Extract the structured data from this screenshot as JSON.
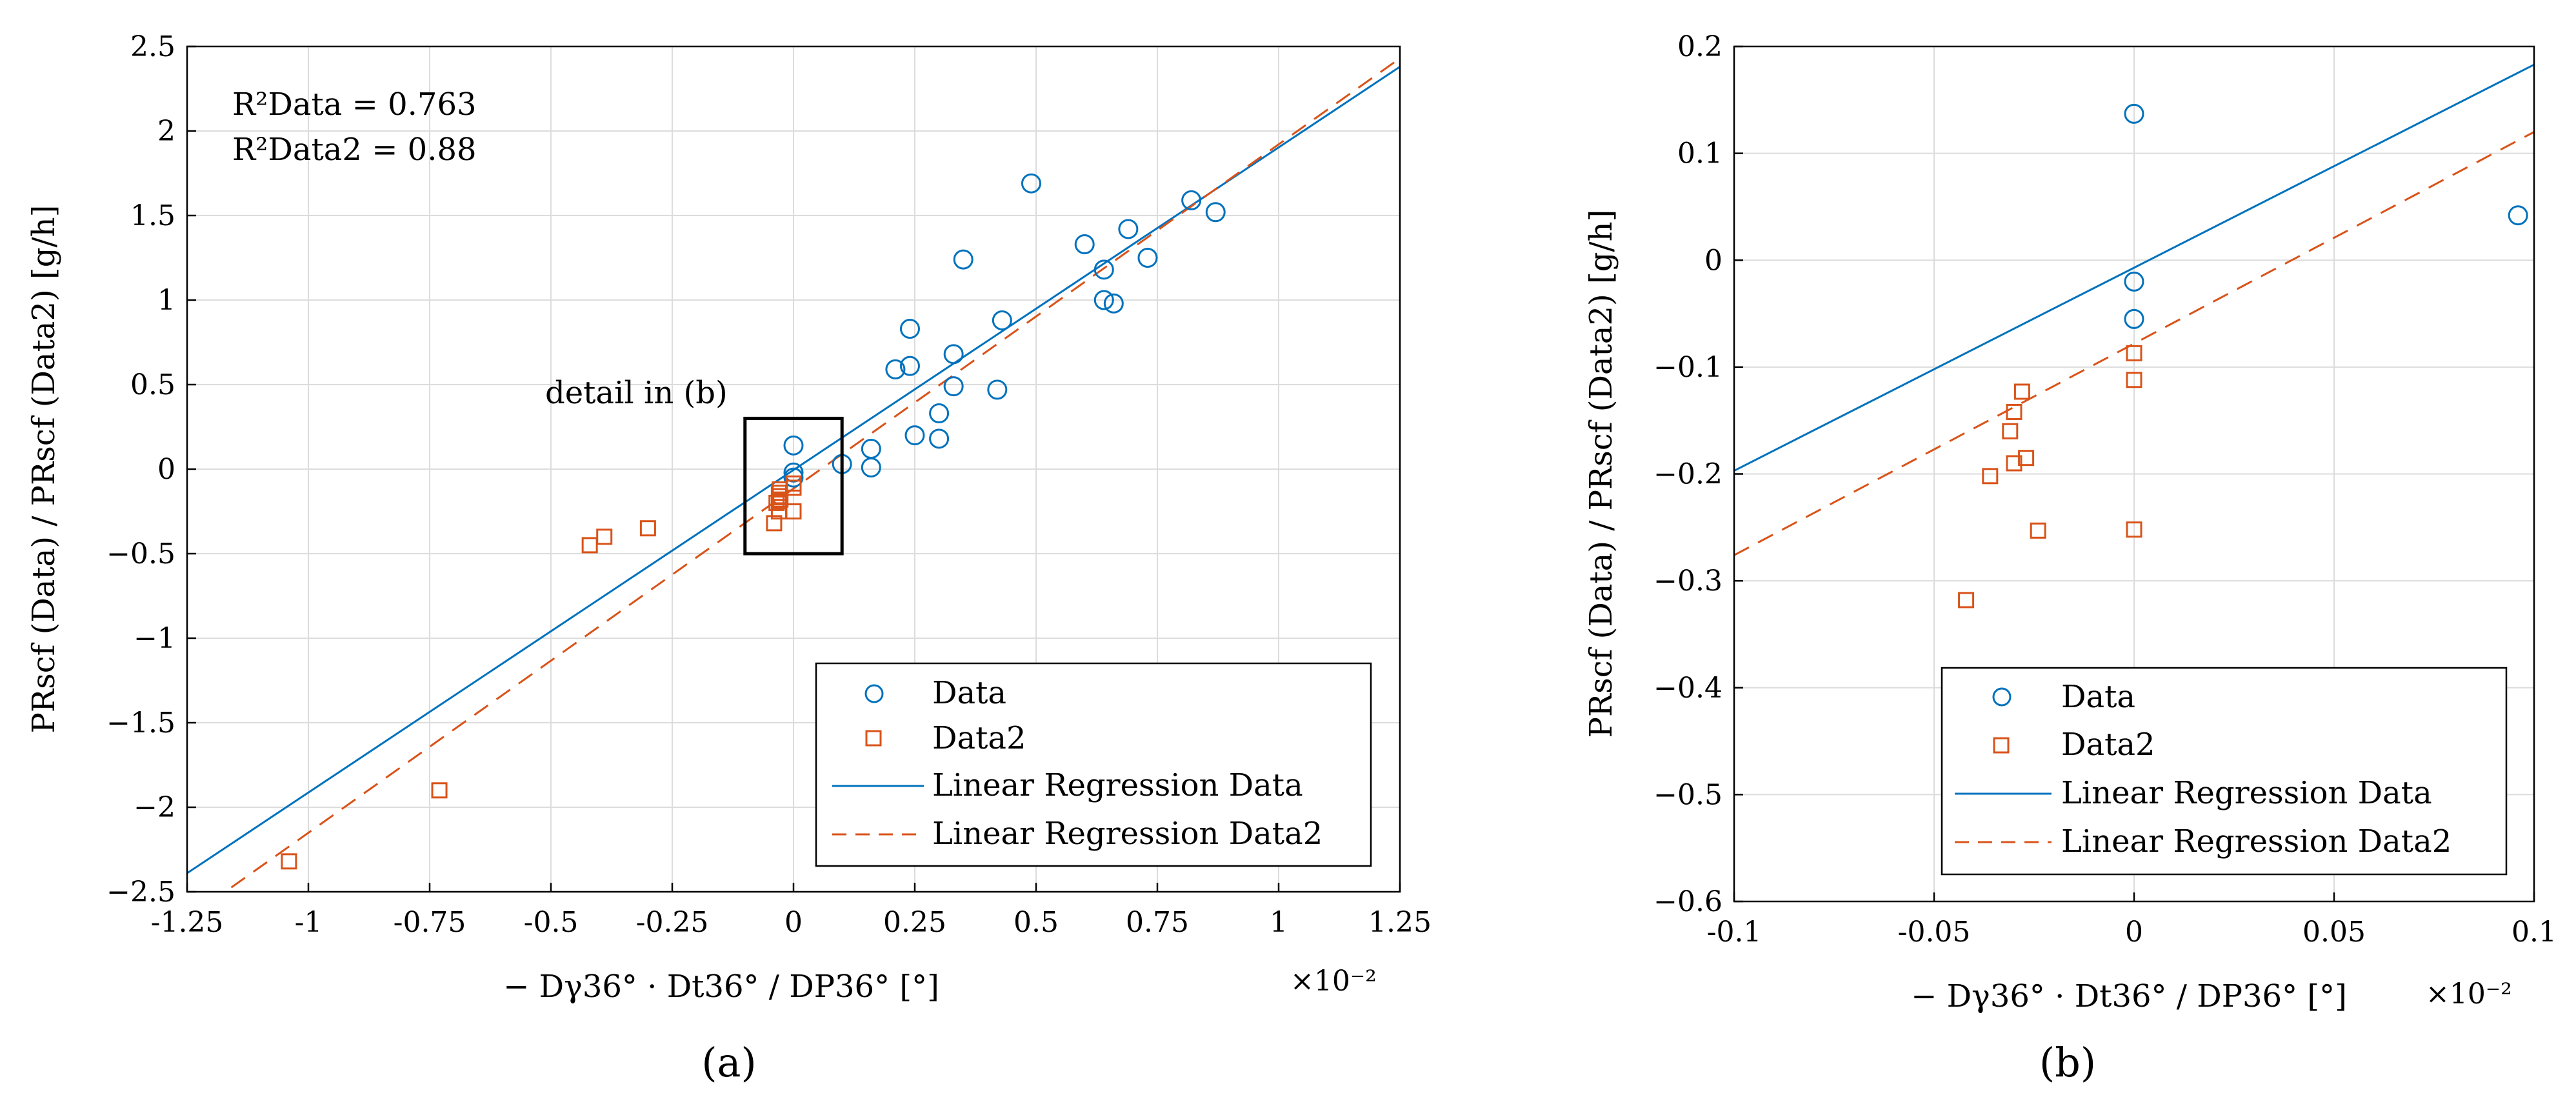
{
  "chart_data": [
    {
      "id": "a",
      "type": "scatter",
      "panel_label": "(a)",
      "xlabel": "− Dγ36° · Dt36° / DP36° [°]",
      "x_multiplier": "×10⁻²",
      "ylabel": "PRscf (Data) / PRscf (Data2) [g/h]",
      "xlim": [
        -1.25,
        1.25
      ],
      "ylim": [
        -2.5,
        2.5
      ],
      "xticks": [
        -1.25,
        -1,
        -0.75,
        -0.5,
        -0.25,
        0,
        0.25,
        0.5,
        0.75,
        1,
        1.25
      ],
      "xtick_labels": [
        "-1.25",
        "-1",
        "-0.75",
        "-0.5",
        "-0.25",
        "0",
        "0.25",
        "0.5",
        "0.75",
        "1",
        "1.25"
      ],
      "yticks": [
        -2.5,
        -2,
        -1.5,
        -1,
        -0.5,
        0,
        0.5,
        1,
        1.5,
        2,
        2.5
      ],
      "ytick_labels": [
        "−2.5",
        "−2",
        "−1.5",
        "−1",
        "−0.5",
        "0",
        "0.5",
        "1",
        "1.5",
        "2",
        "2.5"
      ],
      "grid": true,
      "annotations": {
        "r2_data": "R²Data = 0.763",
        "r2_data2": "R²Data2 = 0.88",
        "detail": "detail in (b)"
      },
      "detail_box": {
        "x": [
          -0.1,
          0.1
        ],
        "y": [
          -0.5,
          0.3
        ]
      },
      "legend": {
        "position": "bottom-right",
        "entries": [
          "Data",
          "Data2",
          "Linear Regression Data",
          "Linear Regression Data2"
        ]
      },
      "series": [
        {
          "name": "Data",
          "kind": "scatter",
          "marker": "circle",
          "color": "#0072BD",
          "points": [
            [
              0.49,
              1.69
            ],
            [
              0.82,
              1.59
            ],
            [
              0.87,
              1.52
            ],
            [
              0.69,
              1.42
            ],
            [
              0.6,
              1.33
            ],
            [
              0.73,
              1.25
            ],
            [
              0.35,
              1.24
            ],
            [
              0.64,
              1.18
            ],
            [
              0.64,
              1.0
            ],
            [
              0.66,
              0.98
            ],
            [
              0.43,
              0.88
            ],
            [
              0.24,
              0.83
            ],
            [
              0.33,
              0.68
            ],
            [
              0.24,
              0.61
            ],
            [
              0.21,
              0.59
            ],
            [
              0.33,
              0.49
            ],
            [
              0.42,
              0.47
            ],
            [
              0.3,
              0.33
            ],
            [
              0.25,
              0.2
            ],
            [
              0.3,
              0.18
            ],
            [
              0.16,
              0.12
            ],
            [
              0.16,
              0.01
            ],
            [
              0.1,
              0.03
            ],
            [
              0.0,
              0.14
            ],
            [
              0.0,
              -0.02
            ],
            [
              0.0,
              -0.05
            ]
          ]
        },
        {
          "name": "Data2",
          "kind": "scatter",
          "marker": "square",
          "color": "#D95319",
          "points": [
            [
              -1.04,
              -2.32
            ],
            [
              -0.73,
              -1.9
            ],
            [
              -0.42,
              -0.45
            ],
            [
              -0.39,
              -0.4
            ],
            [
              -0.3,
              -0.35
            ],
            [
              -0.04,
              -0.32
            ],
            [
              -0.03,
              -0.25
            ],
            [
              -0.035,
              -0.2
            ],
            [
              -0.03,
              -0.19
            ],
            [
              -0.027,
              -0.18
            ],
            [
              -0.03,
              -0.16
            ],
            [
              -0.03,
              -0.14
            ],
            [
              -0.028,
              -0.12
            ],
            [
              0.0,
              -0.25
            ],
            [
              0.0,
              -0.11
            ],
            [
              0.0,
              -0.085
            ]
          ]
        },
        {
          "name": "Linear Regression Data",
          "kind": "line",
          "style": "solid",
          "color": "#0072BD",
          "x": [
            -1.25,
            1.25
          ],
          "y": [
            -2.39,
            2.38
          ]
        },
        {
          "name": "Linear Regression Data2",
          "kind": "line",
          "style": "dashed",
          "color": "#D95319",
          "x": [
            -1.25,
            1.25
          ],
          "y": [
            -2.66,
            2.43
          ]
        }
      ]
    },
    {
      "id": "b",
      "type": "scatter",
      "panel_label": "(b)",
      "xlabel": "− Dγ36° · Dt36° / DP36° [°]",
      "x_multiplier": "×10⁻²",
      "ylabel": "PRscf (Data) / PRscf (Data2) [g/h]",
      "xlim": [
        -0.1,
        0.1
      ],
      "ylim": [
        -0.6,
        0.2
      ],
      "xticks": [
        -0.1,
        -0.05,
        0,
        0.05,
        0.1
      ],
      "xtick_labels": [
        "-0.1",
        "-0.05",
        "0",
        "0.05",
        "0.1"
      ],
      "yticks": [
        -0.6,
        -0.5,
        -0.4,
        -0.3,
        -0.2,
        -0.1,
        0,
        0.1,
        0.2
      ],
      "ytick_labels": [
        "−0.6",
        "−0.5",
        "−0.4",
        "−0.3",
        "−0.2",
        "−0.1",
        "0",
        "0.1",
        "0.2"
      ],
      "grid": true,
      "legend": {
        "position": "bottom-left",
        "entries": [
          "Data",
          "Data2",
          "Linear Regression Data",
          "Linear Regression Data2"
        ]
      },
      "series": [
        {
          "name": "Data",
          "kind": "scatter",
          "marker": "circle",
          "color": "#0072BD",
          "points": [
            [
              0.0,
              0.137
            ],
            [
              0.0,
              -0.02
            ],
            [
              0.0,
              -0.055
            ],
            [
              0.096,
              0.042
            ]
          ]
        },
        {
          "name": "Data2",
          "kind": "scatter",
          "marker": "square",
          "color": "#D95319",
          "points": [
            [
              -0.042,
              -0.318
            ],
            [
              -0.036,
              -0.202
            ],
            [
              -0.031,
              -0.16
            ],
            [
              -0.03,
              -0.142
            ],
            [
              -0.028,
              -0.123
            ],
            [
              -0.03,
              -0.19
            ],
            [
              -0.027,
              -0.185
            ],
            [
              -0.024,
              -0.253
            ],
            [
              0.0,
              -0.087
            ],
            [
              0.0,
              -0.112
            ],
            [
              0.0,
              -0.252
            ]
          ]
        },
        {
          "name": "Linear Regression Data",
          "kind": "line",
          "style": "solid",
          "color": "#0072BD",
          "x": [
            -0.1,
            0.1
          ],
          "y": [
            -0.197,
            0.183
          ]
        },
        {
          "name": "Linear Regression Data2",
          "kind": "line",
          "style": "dashed",
          "color": "#D95319",
          "x": [
            -0.1,
            0.1
          ],
          "y": [
            -0.276,
            0.12
          ]
        }
      ]
    }
  ]
}
